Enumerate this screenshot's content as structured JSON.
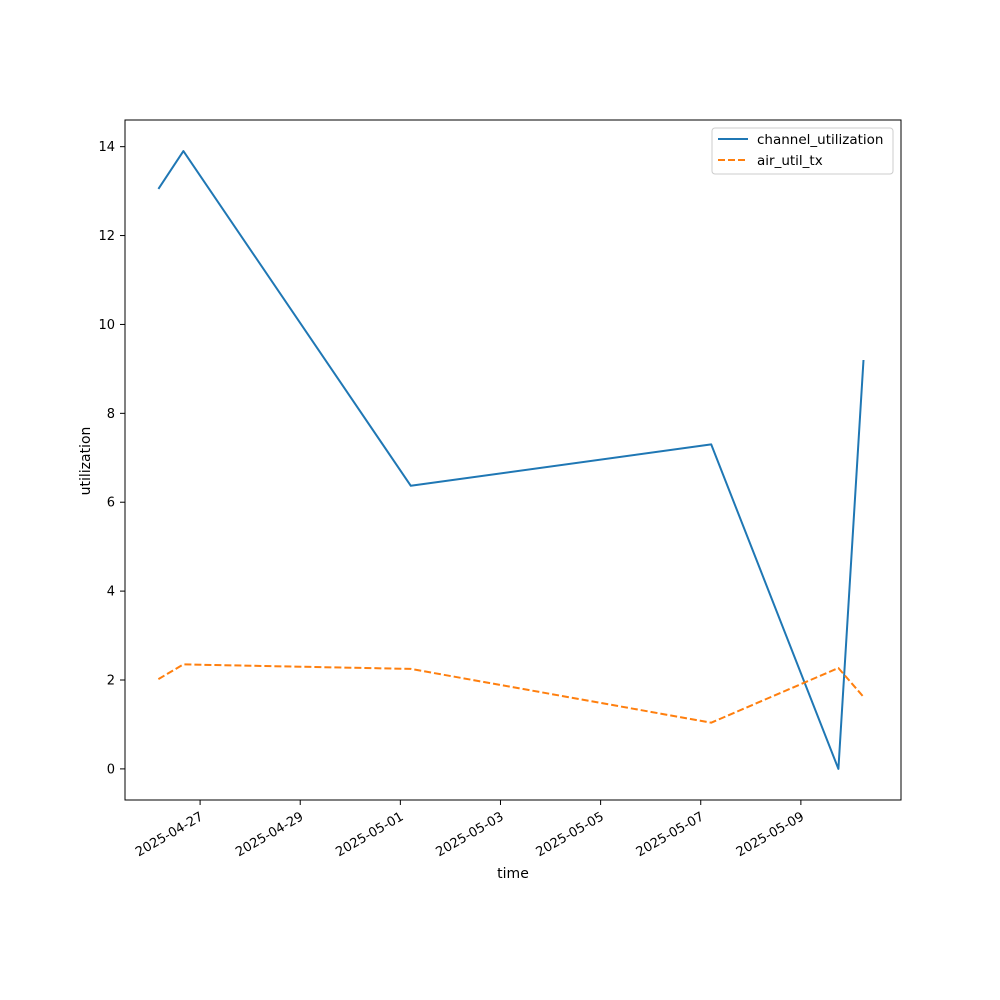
{
  "chart_data": {
    "type": "line",
    "title": "",
    "xlabel": "time",
    "ylabel": "utilization",
    "x_type": "date",
    "xlim": [
      "2025-04-25T12:00",
      "2025-05-11T00:00"
    ],
    "ylim": [
      -0.7,
      14.6
    ],
    "x_ticks": [
      "2025-04-27",
      "2025-04-29",
      "2025-05-01",
      "2025-05-03",
      "2025-05-05",
      "2025-05-07",
      "2025-05-09"
    ],
    "y_ticks": [
      0,
      2,
      4,
      6,
      8,
      10,
      12,
      14
    ],
    "x": [
      "2025-04-26T04:00",
      "2025-04-26T16:00",
      "2025-05-01T05:00",
      "2025-05-07T05:00",
      "2025-05-09T18:00",
      "2025-05-10T06:00"
    ],
    "series": [
      {
        "name": "channel_utilization",
        "color": "#1f77b4",
        "style": "solid",
        "values": [
          13.05,
          13.9,
          6.37,
          7.3,
          0.0,
          9.2
        ]
      },
      {
        "name": "air_util_tx",
        "color": "#ff7f0e",
        "style": "dashed",
        "values": [
          2.02,
          2.35,
          2.25,
          1.04,
          2.27,
          1.62
        ]
      }
    ],
    "legend_position": "top-right",
    "grid": false
  }
}
